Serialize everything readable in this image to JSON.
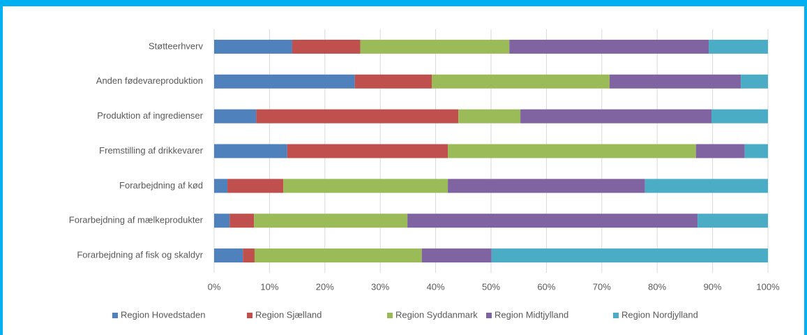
{
  "chart_data": {
    "type": "stacked-barh",
    "categories": [
      "Støtteerhverv",
      "Anden fødevareproduktion",
      "Produktion af ingredienser",
      "Fremstilling af drikkevarer",
      "Forarbejdning af kød",
      "Forarbejdning af mælkeprodukter",
      "Forarbejdning af fisk og skaldyr"
    ],
    "series": [
      {
        "name": "Region Hovedstaden",
        "color": "#4f81bd",
        "values": [
          14.1,
          25.4,
          7.6,
          13.2,
          2.4,
          2.8,
          5.2
        ]
      },
      {
        "name": "Region Sjælland",
        "color": "#c0504d",
        "values": [
          12.3,
          13.9,
          36.5,
          29.0,
          10.1,
          4.4,
          2.1
        ]
      },
      {
        "name": "Region Syddanmark",
        "color": "#9bbb59",
        "values": [
          26.9,
          32.1,
          11.2,
          44.8,
          29.7,
          27.7,
          30.2
        ]
      },
      {
        "name": "Region Midtjylland",
        "color": "#8064a2",
        "values": [
          36.0,
          23.7,
          34.5,
          8.8,
          35.6,
          52.4,
          12.6
        ]
      },
      {
        "name": "Region Nordjylland",
        "color": "#4bacc6",
        "values": [
          10.7,
          4.9,
          10.2,
          4.2,
          22.2,
          12.7,
          49.9
        ]
      }
    ],
    "xlim": [
      0,
      100
    ],
    "xticks": [
      {
        "value": 0,
        "label": "0%"
      },
      {
        "value": 10,
        "label": "10%"
      },
      {
        "value": 20,
        "label": "20%"
      },
      {
        "value": 30,
        "label": "30%"
      },
      {
        "value": 40,
        "label": "40%"
      },
      {
        "value": 50,
        "label": "50%"
      },
      {
        "value": 60,
        "label": "60%"
      },
      {
        "value": 70,
        "label": "70%"
      },
      {
        "value": 80,
        "label": "80%"
      },
      {
        "value": 90,
        "label": "90%"
      },
      {
        "value": 100,
        "label": "100%"
      }
    ],
    "grid": true,
    "legend": "bottom"
  }
}
